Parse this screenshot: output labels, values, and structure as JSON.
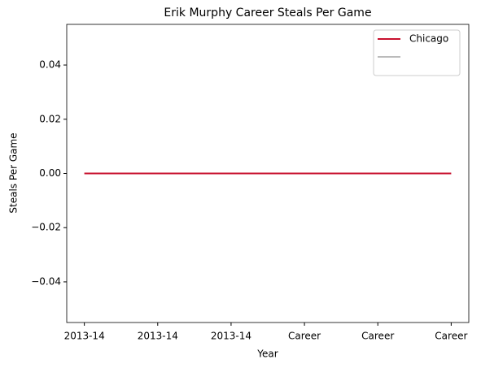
{
  "chart_data": {
    "type": "line",
    "title": "Erik Murphy Career Steals Per Game",
    "x_label": "Year",
    "y_label": "Steals Per Game",
    "categories": [
      "2013-14",
      "2013-14",
      "2013-14",
      "Career",
      "Career",
      "Career"
    ],
    "series": [
      {
        "name": "Chicago",
        "color": "#c8102e",
        "values": [
          0,
          0,
          0,
          0,
          0,
          0
        ]
      },
      {
        "color": "#bbbbbb",
        "values": [
          0,
          0,
          0,
          0,
          0,
          0
        ]
      }
    ],
    "ylim": [
      -0.055,
      0.055
    ],
    "yticks": [
      {
        "value": -0.04,
        "label": "−0.04"
      },
      {
        "value": -0.02,
        "label": "−0.02"
      },
      {
        "value": 0,
        "label": "0.00"
      },
      0.02,
      0.04
    ],
    "legend": "upper right",
    "grid": false
  }
}
